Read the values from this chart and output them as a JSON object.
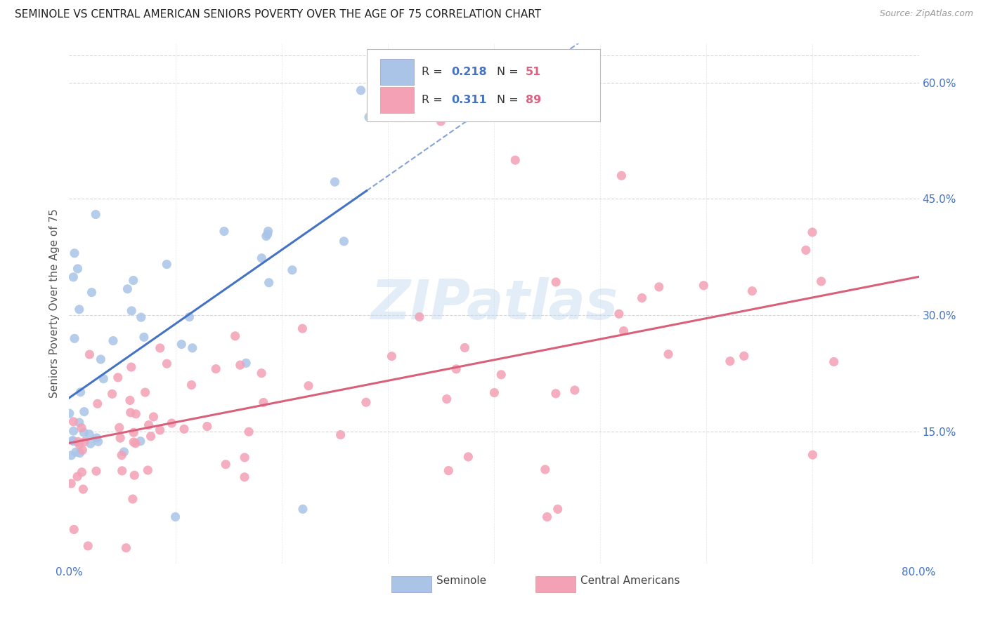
{
  "title": "SEMINOLE VS CENTRAL AMERICAN SENIORS POVERTY OVER THE AGE OF 75 CORRELATION CHART",
  "source": "Source: ZipAtlas.com",
  "ylabel": "Seniors Poverty Over the Age of 75",
  "xmin": 0.0,
  "xmax": 0.8,
  "ymin": -0.02,
  "ymax": 0.65,
  "ytick_vals": [
    0.15,
    0.3,
    0.45,
    0.6
  ],
  "ytick_labels": [
    "15.0%",
    "30.0%",
    "45.0%",
    "60.0%"
  ],
  "xtick_vals": [
    0.0,
    0.1,
    0.2,
    0.3,
    0.4,
    0.5,
    0.6,
    0.7,
    0.8
  ],
  "xtick_labels": [
    "0.0%",
    "",
    "",
    "",
    "",
    "",
    "",
    "",
    "80.0%"
  ],
  "seminole_R": 0.218,
  "seminole_N": 51,
  "central_R": 0.311,
  "central_N": 89,
  "seminole_dot_color": "#aac4e8",
  "central_dot_color": "#f4a0b5",
  "seminole_line_color": "#4472c4",
  "central_line_color": "#d9607a",
  "background_color": "#ffffff",
  "grid_color": "#cccccc",
  "watermark_text": "ZIPatlas",
  "tick_color": "#4472c4",
  "title_color": "#222222",
  "source_color": "#999999",
  "ylabel_color": "#555555"
}
